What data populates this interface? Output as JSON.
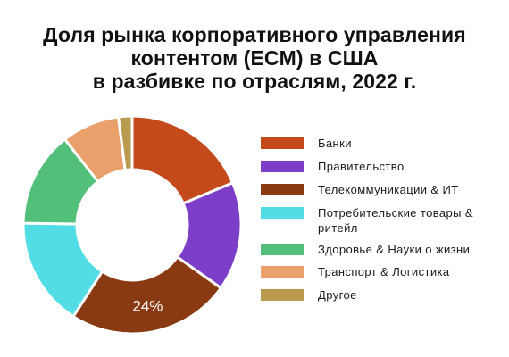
{
  "chart_data": {
    "type": "pie",
    "title_lines": [
      "Доля рынка корпоративного управления",
      "контентом (ECM) в США",
      "в разбивке по отраслям, 2022 г."
    ],
    "categories": [
      "Банки",
      "Правительство",
      "Телекоммуникации & ИТ",
      "Потребительские товары & ритейл",
      "Здоровье & Науки о жизни",
      "Транспорт & Логистика",
      "Другое"
    ],
    "values": [
      18.5,
      16,
      24,
      16,
      14,
      8.5,
      2
    ],
    "colors": [
      "#c4491b",
      "#7e3fc8",
      "#8a3a12",
      "#52dce6",
      "#52c07a",
      "#eaa06b",
      "#b99a4f"
    ],
    "data_labels": [
      "",
      "",
      "24%",
      "",
      "",
      "",
      ""
    ],
    "donut": true,
    "legend_position": "right"
  }
}
